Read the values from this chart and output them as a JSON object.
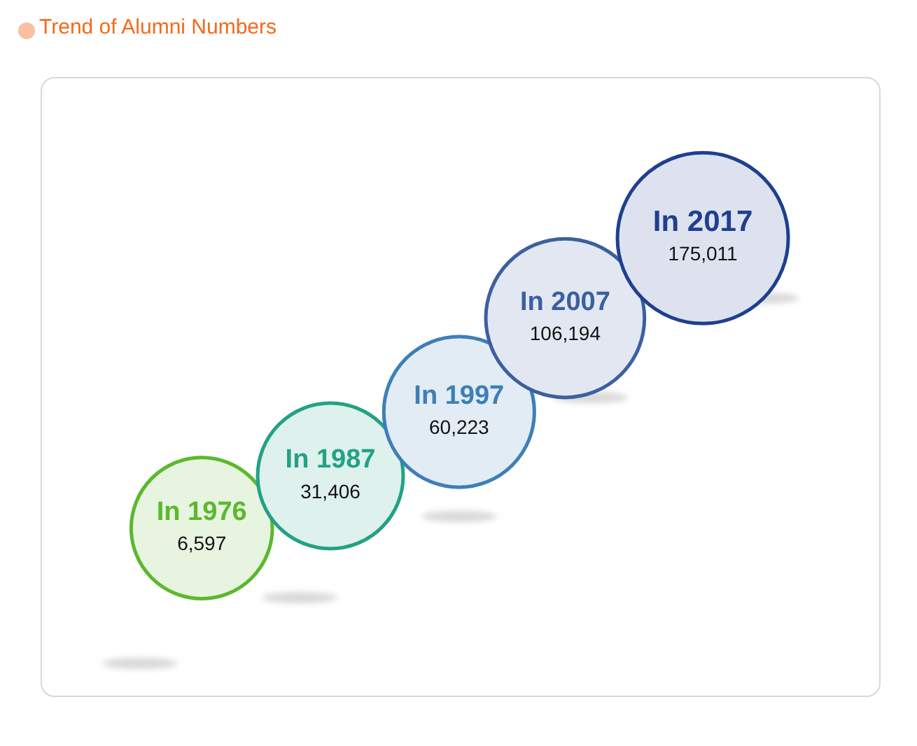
{
  "chart_data": {
    "type": "other",
    "title": "Trend of Alumni Numbers",
    "categories": [
      "In 1976",
      "In 1987",
      "In 1997",
      "In 2007",
      "In 2017"
    ],
    "values": [
      6597,
      31406,
      60223,
      106194,
      175011
    ],
    "value_labels": [
      "6,597",
      "31,406",
      "60,223",
      "106,194",
      "175,011"
    ],
    "colors": [
      "#5cb82e",
      "#23a185",
      "#3d7fb8",
      "#3c5fa0",
      "#1f3f8f"
    ]
  }
}
